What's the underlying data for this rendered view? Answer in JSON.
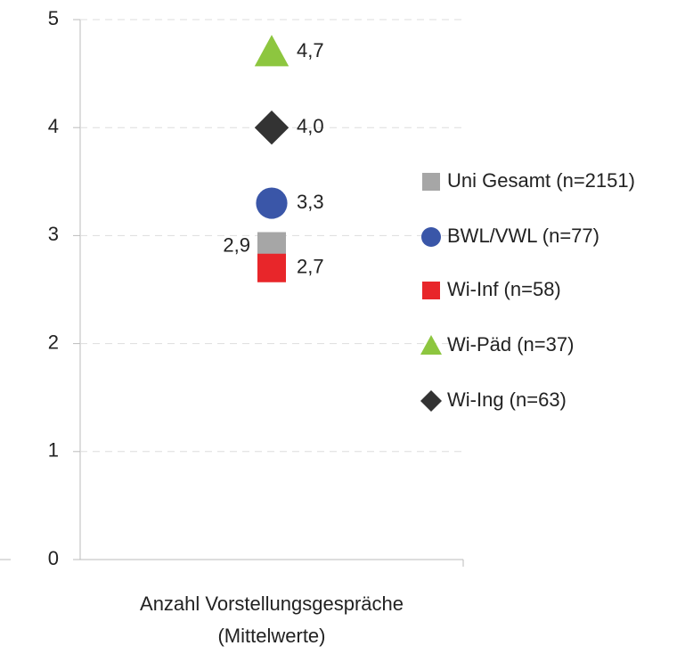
{
  "chart_data": {
    "type": "scatter",
    "categories": [
      "Anzahl Vorstellungsgespräche (Mittelwerte)"
    ],
    "ylim": [
      0,
      5
    ],
    "yticks": [
      0,
      1,
      2,
      3,
      4,
      5
    ],
    "grid": true,
    "legend": "right",
    "series": [
      {
        "name": "Uni Gesamt (n=2151)",
        "color": "#a6a6a6",
        "marker": "square",
        "label_side": "left",
        "values": [
          2.9
        ],
        "value_labels": [
          "2,9"
        ]
      },
      {
        "name": "BWL/VWL (n=77)",
        "color": "#3a56a8",
        "marker": "circle",
        "label_side": "right",
        "values": [
          3.3
        ],
        "value_labels": [
          "3,3"
        ]
      },
      {
        "name": "Wi-Inf (n=58)",
        "color": "#e8262a",
        "marker": "square",
        "label_side": "right",
        "values": [
          2.7
        ],
        "value_labels": [
          "2,7"
        ]
      },
      {
        "name": "Wi-Päd (n=37)",
        "color": "#8dc63f",
        "marker": "triangle",
        "label_side": "right",
        "values": [
          4.7
        ],
        "value_labels": [
          "4,7"
        ]
      },
      {
        "name": "Wi-Ing (n=63)",
        "color": "#333333",
        "marker": "diamond",
        "label_side": "right",
        "values": [
          4.0
        ],
        "value_labels": [
          "4,0"
        ]
      }
    ]
  }
}
